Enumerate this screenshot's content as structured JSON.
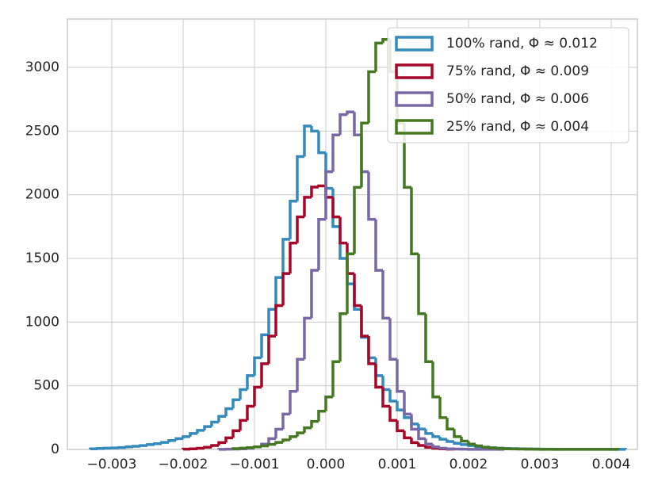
{
  "chart_data": {
    "type": "histogram",
    "grid": true,
    "legend": "upper right",
    "xlim": [
      -0.003622,
      0.004367
    ],
    "ylim": [
      0,
      3380
    ],
    "xticks": [
      {
        "value": -0.003,
        "label": "−0.003"
      },
      {
        "value": -0.002,
        "label": "−0.002"
      },
      {
        "value": -0.001,
        "label": "−0.001"
      },
      {
        "value": 0,
        "label": "0.000"
      },
      {
        "value": 0.001,
        "label": "0.001"
      },
      {
        "value": 0.002,
        "label": "0.002"
      },
      {
        "value": 0.003,
        "label": "0.003"
      },
      {
        "value": 0.004,
        "label": "0.004"
      }
    ],
    "yticks": [
      0,
      500,
      1000,
      1500,
      2000,
      2500,
      3000
    ],
    "series": [
      {
        "name": "100% rand, Φ ≈ 0.012",
        "color": "#348abd",
        "bins": [
          -0.0033,
          -0.0032,
          -0.0031,
          -0.003,
          -0.0029,
          -0.0028,
          -0.0027,
          -0.0026,
          -0.0025,
          -0.0024,
          -0.0023,
          -0.0022,
          -0.0021,
          -0.002,
          -0.0019,
          -0.0018,
          -0.0017,
          -0.0016,
          -0.0015,
          -0.0014,
          -0.0013,
          -0.0012,
          -0.0011,
          -0.001,
          -0.0009,
          -0.0008,
          -0.0007,
          -0.0006,
          -0.0005,
          -0.0004,
          -0.0003,
          -0.0002,
          -0.0001,
          0,
          0.0001,
          0.0002,
          0.0003,
          0.0004,
          0.0005,
          0.0006,
          0.0007,
          0.0008,
          0.0009,
          0.001,
          0.0011,
          0.0012,
          0.0013,
          0.0014,
          0.0015,
          0.0016,
          0.0017,
          0.0018,
          0.0019,
          0.002,
          0.0021,
          0.0022,
          0.0023,
          0.0024,
          0.0025,
          0.0026,
          0.0027,
          0.0028,
          0.0029,
          0.003,
          0.0031,
          0.0032,
          0.0033,
          0.0034,
          0.0035,
          0.0036,
          0.0037,
          0.0038,
          0.0039,
          0.004,
          0.0041,
          0.0042
        ],
        "values": [
          5,
          8,
          10,
          12,
          15,
          20,
          25,
          30,
          38,
          45,
          55,
          70,
          85,
          100,
          125,
          150,
          180,
          215,
          260,
          320,
          390,
          470,
          580,
          720,
          900,
          1100,
          1350,
          1650,
          1950,
          2300,
          2540,
          2500,
          2330,
          2050,
          1750,
          1500,
          1300,
          1100,
          880,
          720,
          580,
          470,
          380,
          310,
          250,
          200,
          160,
          125,
          100,
          80,
          62,
          48,
          38,
          30,
          22,
          17,
          13,
          10,
          8,
          6,
          5,
          4,
          3,
          2,
          2,
          1,
          1,
          1,
          1,
          1,
          1,
          1,
          1,
          1,
          1
        ]
      },
      {
        "name": "75% rand, Φ ≈ 0.009",
        "color": "#a60628",
        "bins": [
          -0.002,
          -0.0019,
          -0.0018,
          -0.0017,
          -0.0016,
          -0.0015,
          -0.0014,
          -0.0013,
          -0.0012,
          -0.0011,
          -0.001,
          -0.0009,
          -0.0008,
          -0.0007,
          -0.0006,
          -0.0005,
          -0.0004,
          -0.0003,
          -0.0002,
          -0.0001,
          0,
          0.0001,
          0.0002,
          0.0003,
          0.0004,
          0.0005,
          0.0006,
          0.0007,
          0.0008,
          0.0009,
          0.001,
          0.0011,
          0.0012,
          0.0013,
          0.0014,
          0.0015,
          0.0016,
          0.0017,
          0.0018
        ],
        "values": [
          2,
          5,
          9,
          17,
          31,
          54,
          91,
          147,
          228,
          339,
          489,
          673,
          890,
          1130,
          1381,
          1621,
          1826,
          1980,
          2060,
          2070,
          1980,
          1826,
          1621,
          1381,
          1130,
          890,
          673,
          489,
          339,
          228,
          147,
          91,
          54,
          31,
          17,
          9,
          5,
          2
        ]
      },
      {
        "name": "50% rand, Φ ≈ 0.006",
        "color": "#7a68a6",
        "bins": [
          -0.0015,
          -0.0014,
          -0.0013,
          -0.0012,
          -0.0011,
          -0.001,
          -0.0009,
          -0.0008,
          -0.0007,
          -0.0006,
          -0.0005,
          -0.0004,
          -0.0003,
          -0.0002,
          -0.0001,
          0,
          0.0001,
          0.0002,
          0.0003,
          0.0004,
          0.0005,
          0.0006,
          0.0007,
          0.0008,
          0.0009,
          0.001,
          0.0011,
          0.0012,
          0.0013,
          0.0014,
          0.0015,
          0.0016,
          0.0017,
          0.0018,
          0.0019,
          0.002,
          0.0021,
          0.0022,
          0.0023,
          0.0024,
          0.0025
        ],
        "values": [
          1,
          2,
          3,
          5,
          9,
          20,
          42,
          85,
          159,
          278,
          456,
          708,
          1031,
          1407,
          1807,
          2181,
          2470,
          2629,
          2650,
          2470,
          2181,
          1807,
          1407,
          1031,
          708,
          456,
          278,
          159,
          85,
          42,
          20,
          9,
          5,
          3,
          2,
          1,
          1,
          1,
          1,
          1
        ]
      },
      {
        "name": "25% rand, Φ ≈ 0.004",
        "color": "#467821",
        "bins": [
          -0.0013,
          -0.0012,
          -0.0011,
          -0.001,
          -0.0009,
          -0.0008,
          -0.0007,
          -0.0006,
          -0.0005,
          -0.0004,
          -0.0003,
          -0.0002,
          -0.0001,
          0,
          0.0001,
          0.0002,
          0.0003,
          0.0004,
          0.0005,
          0.0006,
          0.0007,
          0.0008,
          0.0009,
          0.001,
          0.0011,
          0.0012,
          0.0013,
          0.0014,
          0.0015,
          0.0016,
          0.0017,
          0.0018,
          0.0019,
          0.002,
          0.0021,
          0.0022,
          0.0023,
          0.0024,
          0.0025,
          0.0026,
          0.0027,
          0.0028,
          0.0029,
          0.003,
          0.0031,
          0.0032,
          0.0033,
          0.0034,
          0.0035,
          0.0036,
          0.0037,
          0.0038,
          0.0039,
          0.004,
          0.0041
        ],
        "values": [
          6,
          10,
          14,
          20,
          28,
          40,
          55,
          75,
          100,
          130,
          170,
          220,
          300,
          412,
          689,
          1066,
          1536,
          2058,
          2563,
          2966,
          3191,
          3220,
          2966,
          2563,
          2058,
          1536,
          1066,
          689,
          412,
          250,
          160,
          100,
          65,
          42,
          28,
          18,
          12,
          8,
          5,
          4,
          3,
          2,
          2,
          1,
          1,
          1,
          1,
          1,
          1,
          1,
          1,
          1,
          1,
          1
        ]
      }
    ]
  }
}
